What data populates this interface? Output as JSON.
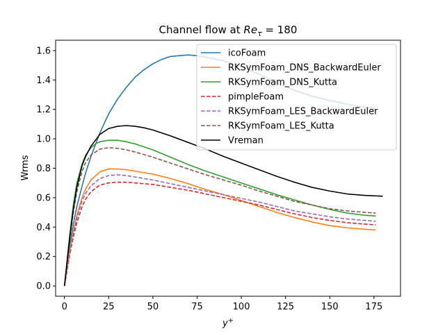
{
  "chart_data": {
    "type": "line",
    "title_prefix": "Channel flow at ",
    "title_math_base": "Re",
    "title_math_sub": "τ",
    "title_math_suffix": " = 180",
    "xlabel_base": "y",
    "xlabel_sup": "+",
    "ylabel": "Wrms",
    "xlim": [
      -5,
      190
    ],
    "ylim": [
      -0.07,
      1.67
    ],
    "xticks": [
      0,
      25,
      50,
      75,
      100,
      125,
      150,
      175
    ],
    "xtick_labels": [
      "0",
      "25",
      "50",
      "75",
      "100",
      "125",
      "150",
      "175"
    ],
    "yticks": [
      0.0,
      0.2,
      0.4,
      0.6,
      0.8,
      1.0,
      1.2,
      1.4,
      1.6
    ],
    "ytick_labels": [
      "0.0",
      "0.2",
      "0.4",
      "0.6",
      "0.8",
      "1.0",
      "1.2",
      "1.4",
      "1.6"
    ],
    "grid": false,
    "legend_position": "top-right",
    "series": [
      {
        "name": "icoFoam",
        "color": "#1f77b4",
        "dash": "solid",
        "x": [
          0,
          1,
          2,
          3,
          5,
          7,
          10,
          12,
          15,
          20,
          25,
          30,
          35,
          40,
          45,
          50,
          55,
          60,
          70,
          75,
          80,
          90,
          100,
          110,
          120,
          130,
          140,
          150,
          160,
          170,
          176
        ],
        "y": [
          0.0,
          0.1,
          0.2,
          0.28,
          0.42,
          0.54,
          0.68,
          0.77,
          0.88,
          1.04,
          1.17,
          1.27,
          1.35,
          1.42,
          1.47,
          1.51,
          1.54,
          1.56,
          1.57,
          1.565,
          1.555,
          1.53,
          1.49,
          1.44,
          1.38,
          1.33,
          1.29,
          1.26,
          1.235,
          1.215,
          1.205
        ]
      },
      {
        "name": "RKSymFoam_DNS_BackwardEuler",
        "color": "#ff7f0e",
        "dash": "solid",
        "x": [
          0,
          1,
          2,
          3,
          5,
          7,
          10,
          12,
          15,
          20,
          25,
          30,
          35,
          40,
          50,
          60,
          70,
          80,
          90,
          100,
          110,
          120,
          130,
          140,
          150,
          160,
          170,
          176
        ],
        "y": [
          0.0,
          0.08,
          0.16,
          0.24,
          0.37,
          0.48,
          0.6,
          0.66,
          0.72,
          0.775,
          0.795,
          0.795,
          0.79,
          0.78,
          0.76,
          0.73,
          0.695,
          0.655,
          0.62,
          0.58,
          0.54,
          0.5,
          0.465,
          0.435,
          0.41,
          0.395,
          0.385,
          0.38
        ]
      },
      {
        "name": "RKSymFoam_DNS_Kutta",
        "color": "#2ca02c",
        "dash": "solid",
        "x": [
          0,
          1,
          2,
          3,
          5,
          7,
          10,
          12,
          15,
          18,
          20,
          25,
          30,
          35,
          40,
          50,
          60,
          70,
          80,
          90,
          100,
          110,
          120,
          130,
          140,
          150,
          160,
          170,
          176
        ],
        "y": [
          0.0,
          0.12,
          0.24,
          0.35,
          0.55,
          0.7,
          0.83,
          0.89,
          0.94,
          0.97,
          0.98,
          0.99,
          0.99,
          0.98,
          0.965,
          0.925,
          0.875,
          0.825,
          0.78,
          0.74,
          0.7,
          0.66,
          0.62,
          0.585,
          0.55,
          0.52,
          0.495,
          0.48,
          0.475
        ]
      },
      {
        "name": "pimpleFoam",
        "color": "#d62728",
        "dash": "dashed",
        "x": [
          0,
          1,
          2,
          3,
          5,
          7,
          10,
          12,
          15,
          20,
          25,
          30,
          35,
          40,
          50,
          60,
          70,
          80,
          90,
          100,
          110,
          120,
          130,
          140,
          150,
          160,
          170,
          176
        ],
        "y": [
          0.0,
          0.07,
          0.14,
          0.21,
          0.33,
          0.43,
          0.54,
          0.59,
          0.64,
          0.685,
          0.7,
          0.705,
          0.705,
          0.7,
          0.69,
          0.67,
          0.65,
          0.625,
          0.6,
          0.575,
          0.55,
          0.52,
          0.49,
          0.465,
          0.445,
          0.43,
          0.42,
          0.415
        ]
      },
      {
        "name": "RKSymFoam_LES_BackwardEuler",
        "color": "#9467bd",
        "dash": "dashed",
        "x": [
          0,
          1,
          2,
          3,
          5,
          7,
          10,
          12,
          15,
          20,
          25,
          30,
          35,
          40,
          50,
          60,
          70,
          80,
          90,
          100,
          110,
          120,
          130,
          140,
          150,
          160,
          170,
          176
        ],
        "y": [
          0.0,
          0.075,
          0.15,
          0.22,
          0.35,
          0.46,
          0.58,
          0.63,
          0.68,
          0.73,
          0.75,
          0.755,
          0.75,
          0.74,
          0.72,
          0.695,
          0.67,
          0.645,
          0.62,
          0.595,
          0.57,
          0.54,
          0.51,
          0.49,
          0.47,
          0.455,
          0.445,
          0.44
        ]
      },
      {
        "name": "RKSymFoam_LES_Kutta",
        "color": "#8c564b",
        "dash": "dashed",
        "x": [
          0,
          1,
          2,
          3,
          5,
          7,
          10,
          12,
          15,
          20,
          25,
          30,
          35,
          40,
          50,
          60,
          70,
          80,
          90,
          100,
          110,
          120,
          130,
          140,
          150,
          160,
          170,
          176
        ],
        "y": [
          0.0,
          0.11,
          0.22,
          0.32,
          0.5,
          0.64,
          0.78,
          0.84,
          0.89,
          0.93,
          0.94,
          0.935,
          0.925,
          0.91,
          0.875,
          0.835,
          0.795,
          0.755,
          0.72,
          0.685,
          0.645,
          0.61,
          0.575,
          0.55,
          0.525,
          0.51,
          0.5,
          0.495
        ]
      },
      {
        "name": "Vreman",
        "color": "#000000",
        "dash": "solid",
        "x": [
          0,
          1,
          2,
          3,
          5,
          7,
          10,
          12,
          15,
          20,
          25,
          30,
          35,
          40,
          45,
          50,
          60,
          70,
          80,
          90,
          100,
          110,
          120,
          130,
          140,
          150,
          160,
          170,
          180
        ],
        "y": [
          0.0,
          0.11,
          0.22,
          0.33,
          0.52,
          0.67,
          0.82,
          0.88,
          0.95,
          1.03,
          1.07,
          1.085,
          1.09,
          1.085,
          1.075,
          1.06,
          1.02,
          0.975,
          0.93,
          0.88,
          0.835,
          0.79,
          0.745,
          0.705,
          0.67,
          0.645,
          0.625,
          0.615,
          0.61
        ]
      }
    ]
  }
}
